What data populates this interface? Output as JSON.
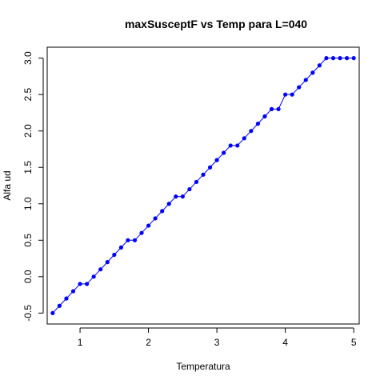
{
  "chart_data": {
    "type": "line",
    "title": "maxSusceptF vs Temp para L=040",
    "xlabel": "Temperatura",
    "ylabel": "Alfa ud",
    "xlim": [
      0.52,
      5.08
    ],
    "ylim": [
      -0.65,
      3.15
    ],
    "xticks": [
      1,
      2,
      3,
      4,
      5
    ],
    "xtick_labels": [
      "1",
      "2",
      "3",
      "4",
      "5"
    ],
    "yticks": [
      -0.5,
      0.0,
      0.5,
      1.0,
      1.5,
      2.0,
      2.5,
      3.0
    ],
    "ytick_labels": [
      "-0.5",
      "0.0",
      "0.5",
      "1.0",
      "1.5",
      "2.0",
      "2.5",
      "3.0"
    ],
    "grid": false,
    "series": [
      {
        "color": "#0000ff",
        "marker": "filled-circle",
        "x": [
          0.6,
          0.7,
          0.8,
          0.9,
          1.0,
          1.1,
          1.2,
          1.3,
          1.4,
          1.5,
          1.6,
          1.7,
          1.8,
          1.9,
          2.0,
          2.1,
          2.2,
          2.3,
          2.4,
          2.5,
          2.6,
          2.7,
          2.8,
          2.9,
          3.0,
          3.1,
          3.2,
          3.3,
          3.4,
          3.5,
          3.6,
          3.7,
          3.8,
          3.9,
          4.0,
          4.1,
          4.2,
          4.3,
          4.4,
          4.5,
          4.6,
          4.7,
          4.8,
          4.9,
          5.0
        ],
        "y": [
          -0.5,
          -0.4,
          -0.3,
          -0.2,
          -0.1,
          -0.1,
          0.0,
          0.1,
          0.2,
          0.3,
          0.4,
          0.5,
          0.5,
          0.6,
          0.7,
          0.8,
          0.9,
          1.0,
          1.1,
          1.1,
          1.2,
          1.3,
          1.4,
          1.5,
          1.6,
          1.7,
          1.8,
          1.8,
          1.9,
          2.0,
          2.1,
          2.2,
          2.3,
          2.3,
          2.5,
          2.5,
          2.6,
          2.7,
          2.8,
          2.9,
          3.0,
          3.0,
          3.0,
          3.0,
          3.0
        ]
      }
    ]
  }
}
